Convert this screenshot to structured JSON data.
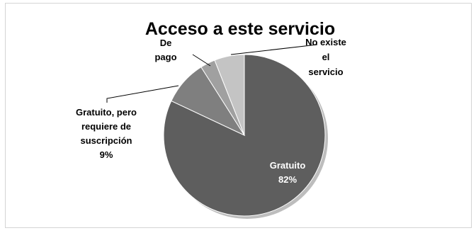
{
  "chart_data": {
    "type": "pie",
    "title": "Acceso a este servicio",
    "slices": [
      {
        "name": "Gratuito",
        "value": 82,
        "label_lines": [
          "Gratuito",
          "82%"
        ],
        "color": "#5e5e5e"
      },
      {
        "name": "Gratuito, pero requiere de suscripción",
        "value": 9,
        "label_lines": [
          "Gratuito, pero",
          "requiere de",
          "suscripción",
          "9%"
        ],
        "color": "#7f7f7f"
      },
      {
        "name": "De pago",
        "value": 3,
        "label_lines": [
          "De",
          "pago"
        ],
        "color": "#a0a0a0"
      },
      {
        "name": "No existe el servicio",
        "value": 6,
        "label_lines": [
          "No existe",
          "el",
          "servicio"
        ],
        "color": "#c4c4c4"
      }
    ],
    "start_angle_deg": 0,
    "direction": "clockwise",
    "legend": "none",
    "shadow_color": "#bdbdbd"
  }
}
